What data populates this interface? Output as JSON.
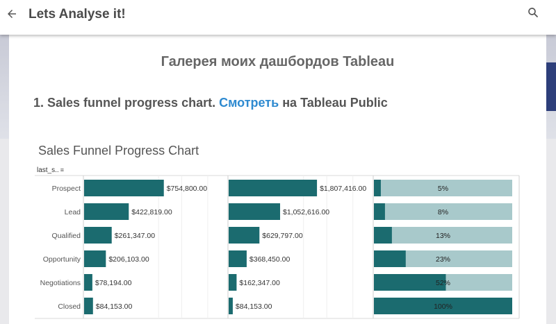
{
  "topbar": {
    "title": "Lets Analyse it!",
    "back_icon": "arrow-left-icon",
    "search_icon": "search-icon"
  },
  "content": {
    "gallery_title": "Галерея моих дашбордов Tableau",
    "section": {
      "prefix": "1. Sales funnel progress chart. ",
      "link_text": "Смотреть",
      "suffix": " на Tableau Public"
    }
  },
  "colors": {
    "bar": "#1b6b6f",
    "bar_light": "#a8c9cb",
    "link": "#2e8ad0"
  },
  "chart_data": {
    "type": "bar",
    "title": "Sales Funnel Progress Chart",
    "sort_field_label": "last_s..",
    "categories": [
      "Prospect",
      "Lead",
      "Qualified",
      "Opportunity",
      "Negotiations",
      "Closed"
    ],
    "series": [
      {
        "values": [
          754800,
          422819,
          261347,
          206103,
          78194,
          84153
        ],
        "labels": [
          "$754,800.00",
          "$422,819.00",
          "$261,347.00",
          "$206,103.00",
          "$78,194.00",
          "$84,153.00"
        ]
      },
      {
        "values": [
          1807416,
          1052616,
          629797,
          368450,
          162347,
          84153
        ],
        "labels": [
          "$1,807,416.00",
          "$1,052,616.00",
          "$629,797.00",
          "$368,450.00",
          "$162,347.00",
          "$84,153.00"
        ]
      },
      {
        "values": [
          5,
          8,
          13,
          23,
          52,
          100
        ],
        "labels": [
          "5%",
          "8%",
          "13%",
          "23%",
          "52%",
          "100%"
        ]
      }
    ]
  }
}
